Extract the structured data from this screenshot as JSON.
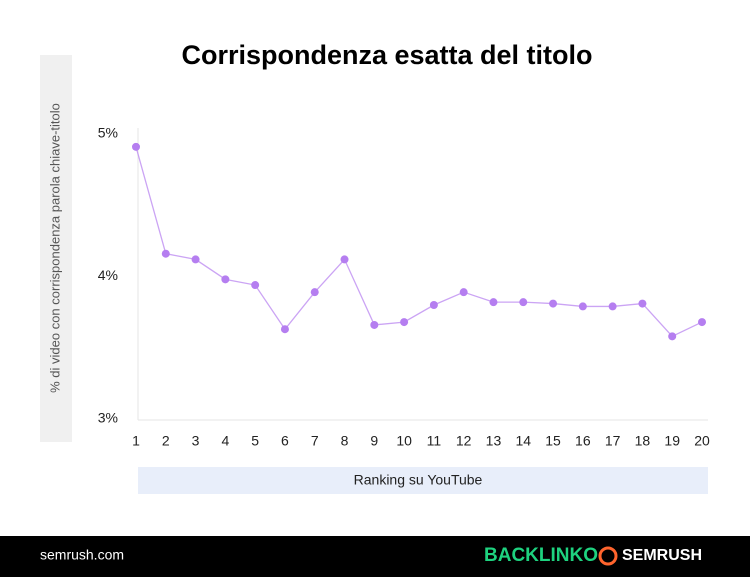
{
  "chart_data": {
    "type": "line",
    "title": "Corrispondenza esatta del titolo",
    "y_label": "% di video con corrispondenza parola chiave-titolo",
    "x_label": "Ranking su YouTube",
    "x": [
      1,
      2,
      3,
      4,
      5,
      6,
      7,
      8,
      9,
      10,
      11,
      12,
      13,
      14,
      15,
      16,
      17,
      18,
      19,
      20
    ],
    "series": [
      {
        "name": "Corrispondenza esatta",
        "color": "#b57ef0",
        "values": [
          4.91,
          4.16,
          4.12,
          3.98,
          3.94,
          3.63,
          3.89,
          4.12,
          3.66,
          3.68,
          3.8,
          3.89,
          3.82,
          3.82,
          3.81,
          3.79,
          3.79,
          3.81,
          3.58,
          3.68
        ]
      }
    ],
    "xlim": [
      1,
      20
    ],
    "xticks": [
      1,
      2,
      3,
      4,
      5,
      6,
      7,
      8,
      9,
      10,
      11,
      12,
      13,
      14,
      15,
      16,
      17,
      18,
      19,
      20
    ],
    "ylim": [
      3,
      5
    ],
    "yticks": [
      {
        "value": 3,
        "label": "3%"
      },
      {
        "value": 4,
        "label": "4%"
      },
      {
        "value": 5,
        "label": "5%"
      }
    ],
    "grid": false
  },
  "footer": {
    "site": "semrush.com",
    "logos": [
      "BACKLINKO",
      "SEMRUSH"
    ]
  }
}
